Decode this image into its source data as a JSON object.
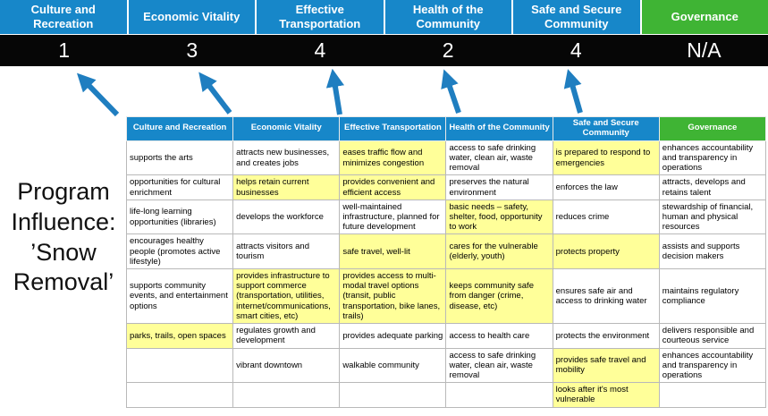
{
  "title": {
    "text": "Program\nInfluence:\n’Snow\nRemoval’"
  },
  "colors": {
    "header_blue": "#1787c9",
    "governance_green": "#3fb434",
    "highlight_yellow": "#ffff99",
    "score_band_black": "#060606",
    "arrow_blue": "#1f7ec0"
  },
  "summary": {
    "columns": [
      {
        "label": "Culture and Recreation",
        "score": "1"
      },
      {
        "label": "Economic Vitality",
        "score": "3"
      },
      {
        "label": "Effective Transportation",
        "score": "4"
      },
      {
        "label": "Health of the Community",
        "score": "2"
      },
      {
        "label": "Safe and Secure Community",
        "score": "4"
      },
      {
        "label": "Governance",
        "score": "N/A"
      }
    ]
  },
  "matrix": {
    "headers": [
      {
        "label": "Culture and Recreation",
        "theme": "blue"
      },
      {
        "label": "Economic Vitality",
        "theme": "blue"
      },
      {
        "label": "Effective Transportation",
        "theme": "blue"
      },
      {
        "label": "Health of the Community",
        "theme": "blue"
      },
      {
        "label": "Safe and Secure Community",
        "theme": "blue"
      },
      {
        "label": "Governance",
        "theme": "green"
      }
    ],
    "rows": [
      [
        {
          "text": "supports the arts",
          "highlight": false
        },
        {
          "text": "attracts new businesses, and creates jobs",
          "highlight": false
        },
        {
          "text": "eases traffic flow and minimizes congestion",
          "highlight": true
        },
        {
          "text": "access to safe drinking water, clean air, waste removal",
          "highlight": false
        },
        {
          "text": "is prepared to respond to emergencies",
          "highlight": true
        },
        {
          "text": "enhances accountability and transparency in operations",
          "highlight": false
        }
      ],
      [
        {
          "text": "opportunities for cultural enrichment",
          "highlight": false
        },
        {
          "text": "helps retain current businesses",
          "highlight": true
        },
        {
          "text": "provides convenient and efficient access",
          "highlight": true
        },
        {
          "text": "preserves the natural environment",
          "highlight": false
        },
        {
          "text": "enforces the law",
          "highlight": false
        },
        {
          "text": "attracts, develops and retains talent",
          "highlight": false
        }
      ],
      [
        {
          "text": "life-long learning opportunities (libraries)",
          "highlight": false
        },
        {
          "text": "develops the workforce",
          "highlight": false
        },
        {
          "text": "well-maintained infrastructure, planned for future development",
          "highlight": false
        },
        {
          "text": "basic needs – safety, shelter, food, opportunity to work",
          "highlight": true
        },
        {
          "text": "reduces crime",
          "highlight": false
        },
        {
          "text": "stewardship of financial, human and physical resources",
          "highlight": false
        }
      ],
      [
        {
          "text": "encourages healthy people (promotes active lifestyle)",
          "highlight": false
        },
        {
          "text": "attracts visitors and tourism",
          "highlight": false
        },
        {
          "text": "safe travel, well-lit",
          "highlight": true
        },
        {
          "text": "cares for the vulnerable (elderly, youth)",
          "highlight": true
        },
        {
          "text": "protects property",
          "highlight": true
        },
        {
          "text": "assists and supports decision makers",
          "highlight": false
        }
      ],
      [
        {
          "text": "supports community events, and entertainment options",
          "highlight": false
        },
        {
          "text": "provides infrastructure to support commerce (transportation, utilities, internet/communications, smart cities, etc)",
          "highlight": true
        },
        {
          "text": "provides access to multi-modal travel options (transit, public transportation, bike lanes, trails)",
          "highlight": true
        },
        {
          "text": "keeps community safe from danger (crime, disease, etc)",
          "highlight": true
        },
        {
          "text": "ensures safe air and access to drinking water",
          "highlight": false
        },
        {
          "text": "maintains regulatory compliance",
          "highlight": false
        }
      ],
      [
        {
          "text": "parks, trails, open spaces",
          "highlight": true
        },
        {
          "text": "regulates growth and development",
          "highlight": false
        },
        {
          "text": "provides adequate parking",
          "highlight": false
        },
        {
          "text": "access to health care",
          "highlight": false
        },
        {
          "text": "protects the environment",
          "highlight": false
        },
        {
          "text": "delivers responsible and courteous service",
          "highlight": false
        }
      ],
      [
        {
          "text": "",
          "highlight": false
        },
        {
          "text": "vibrant downtown",
          "highlight": false
        },
        {
          "text": "walkable community",
          "highlight": false
        },
        {
          "text": "access to safe drinking water, clean air, waste removal",
          "highlight": false
        },
        {
          "text": "provides safe travel and mobility",
          "highlight": true
        },
        {
          "text": "enhances accountability and transparency in operations",
          "highlight": false
        }
      ],
      [
        {
          "text": "",
          "highlight": false
        },
        {
          "text": "",
          "highlight": false
        },
        {
          "text": "",
          "highlight": false
        },
        {
          "text": "",
          "highlight": false
        },
        {
          "text": "looks after it's most vulnerable",
          "highlight": true
        },
        {
          "text": "",
          "highlight": false
        }
      ]
    ]
  }
}
